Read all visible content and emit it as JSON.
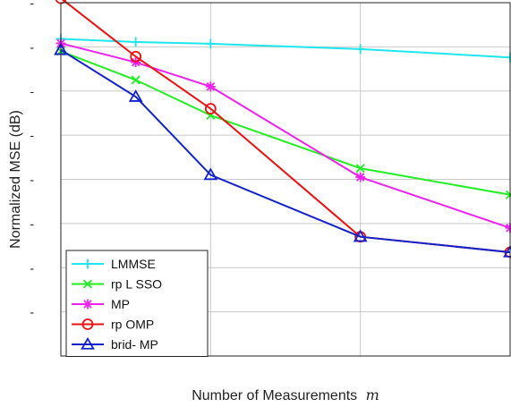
{
  "chart_data": {
    "type": "line",
    "title": "",
    "xlabel": "Number of Measurements",
    "xlabel_var": "m",
    "ylabel": "Normalized MSE (dB)",
    "x": [
      0,
      1,
      2,
      4,
      6
    ],
    "xlim": [
      0,
      6
    ],
    "xgrid": [
      0,
      2,
      4,
      6
    ],
    "ylim": [
      -8,
      0
    ],
    "ygrid": [
      -7,
      -6,
      -5,
      -4,
      -3,
      -2,
      -1,
      0
    ],
    "ytick_labels": [
      "-",
      "-",
      "-",
      "-",
      "-",
      "-",
      "-",
      "-"
    ],
    "grid": true,
    "legend_position": "bottom-left",
    "series": [
      {
        "name": "LMMSE",
        "color": "#1ee6ee",
        "marker": "plus",
        "values": [
          -0.82,
          -0.89,
          -0.93,
          -1.05,
          -1.24
        ]
      },
      {
        "name": "rp L SSO",
        "color": "#22ee22",
        "marker": "x",
        "values": [
          -1.1,
          -1.75,
          -2.55,
          -3.75,
          -4.35
        ]
      },
      {
        "name": " MP",
        "color": "#ee22ee",
        "marker": "star",
        "values": [
          -0.92,
          -1.35,
          -1.9,
          -3.95,
          -5.1
        ]
      },
      {
        "name": "rp OMP",
        "color": "#ee1111",
        "marker": "circle",
        "values": [
          0.1,
          -1.22,
          -2.4,
          -5.3,
          -5.65
        ]
      },
      {
        "name": "brid-  MP",
        "color": "#1122cc",
        "marker": "triangle",
        "values": [
          -1.07,
          -2.13,
          -3.9,
          -5.3,
          -5.65
        ]
      }
    ]
  }
}
